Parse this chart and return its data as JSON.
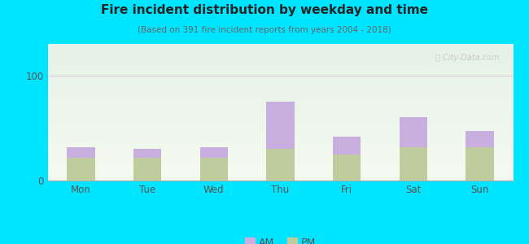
{
  "title": "Fire incident distribution by weekday and time",
  "subtitle": "(Based on 391 fire incident reports from years 2004 - 2018)",
  "categories": [
    "Mon",
    "Tue",
    "Wed",
    "Thu",
    "Fri",
    "Sat",
    "Sun"
  ],
  "am_values": [
    10,
    8,
    10,
    45,
    17,
    28,
    15
  ],
  "pm_values": [
    22,
    22,
    22,
    30,
    25,
    32,
    32
  ],
  "am_color": "#c9aee0",
  "pm_color": "#bfcc9e",
  "background_color": "#00e5ff",
  "plot_bg_color_top": "#e6f2e6",
  "plot_bg_color_bottom": "#f5faf0",
  "ylim": [
    0,
    130
  ],
  "yticks": [
    0,
    100
  ],
  "bar_width": 0.42,
  "title_fontsize": 11,
  "subtitle_fontsize": 7.5,
  "tick_fontsize": 8.5,
  "legend_fontsize": 9
}
